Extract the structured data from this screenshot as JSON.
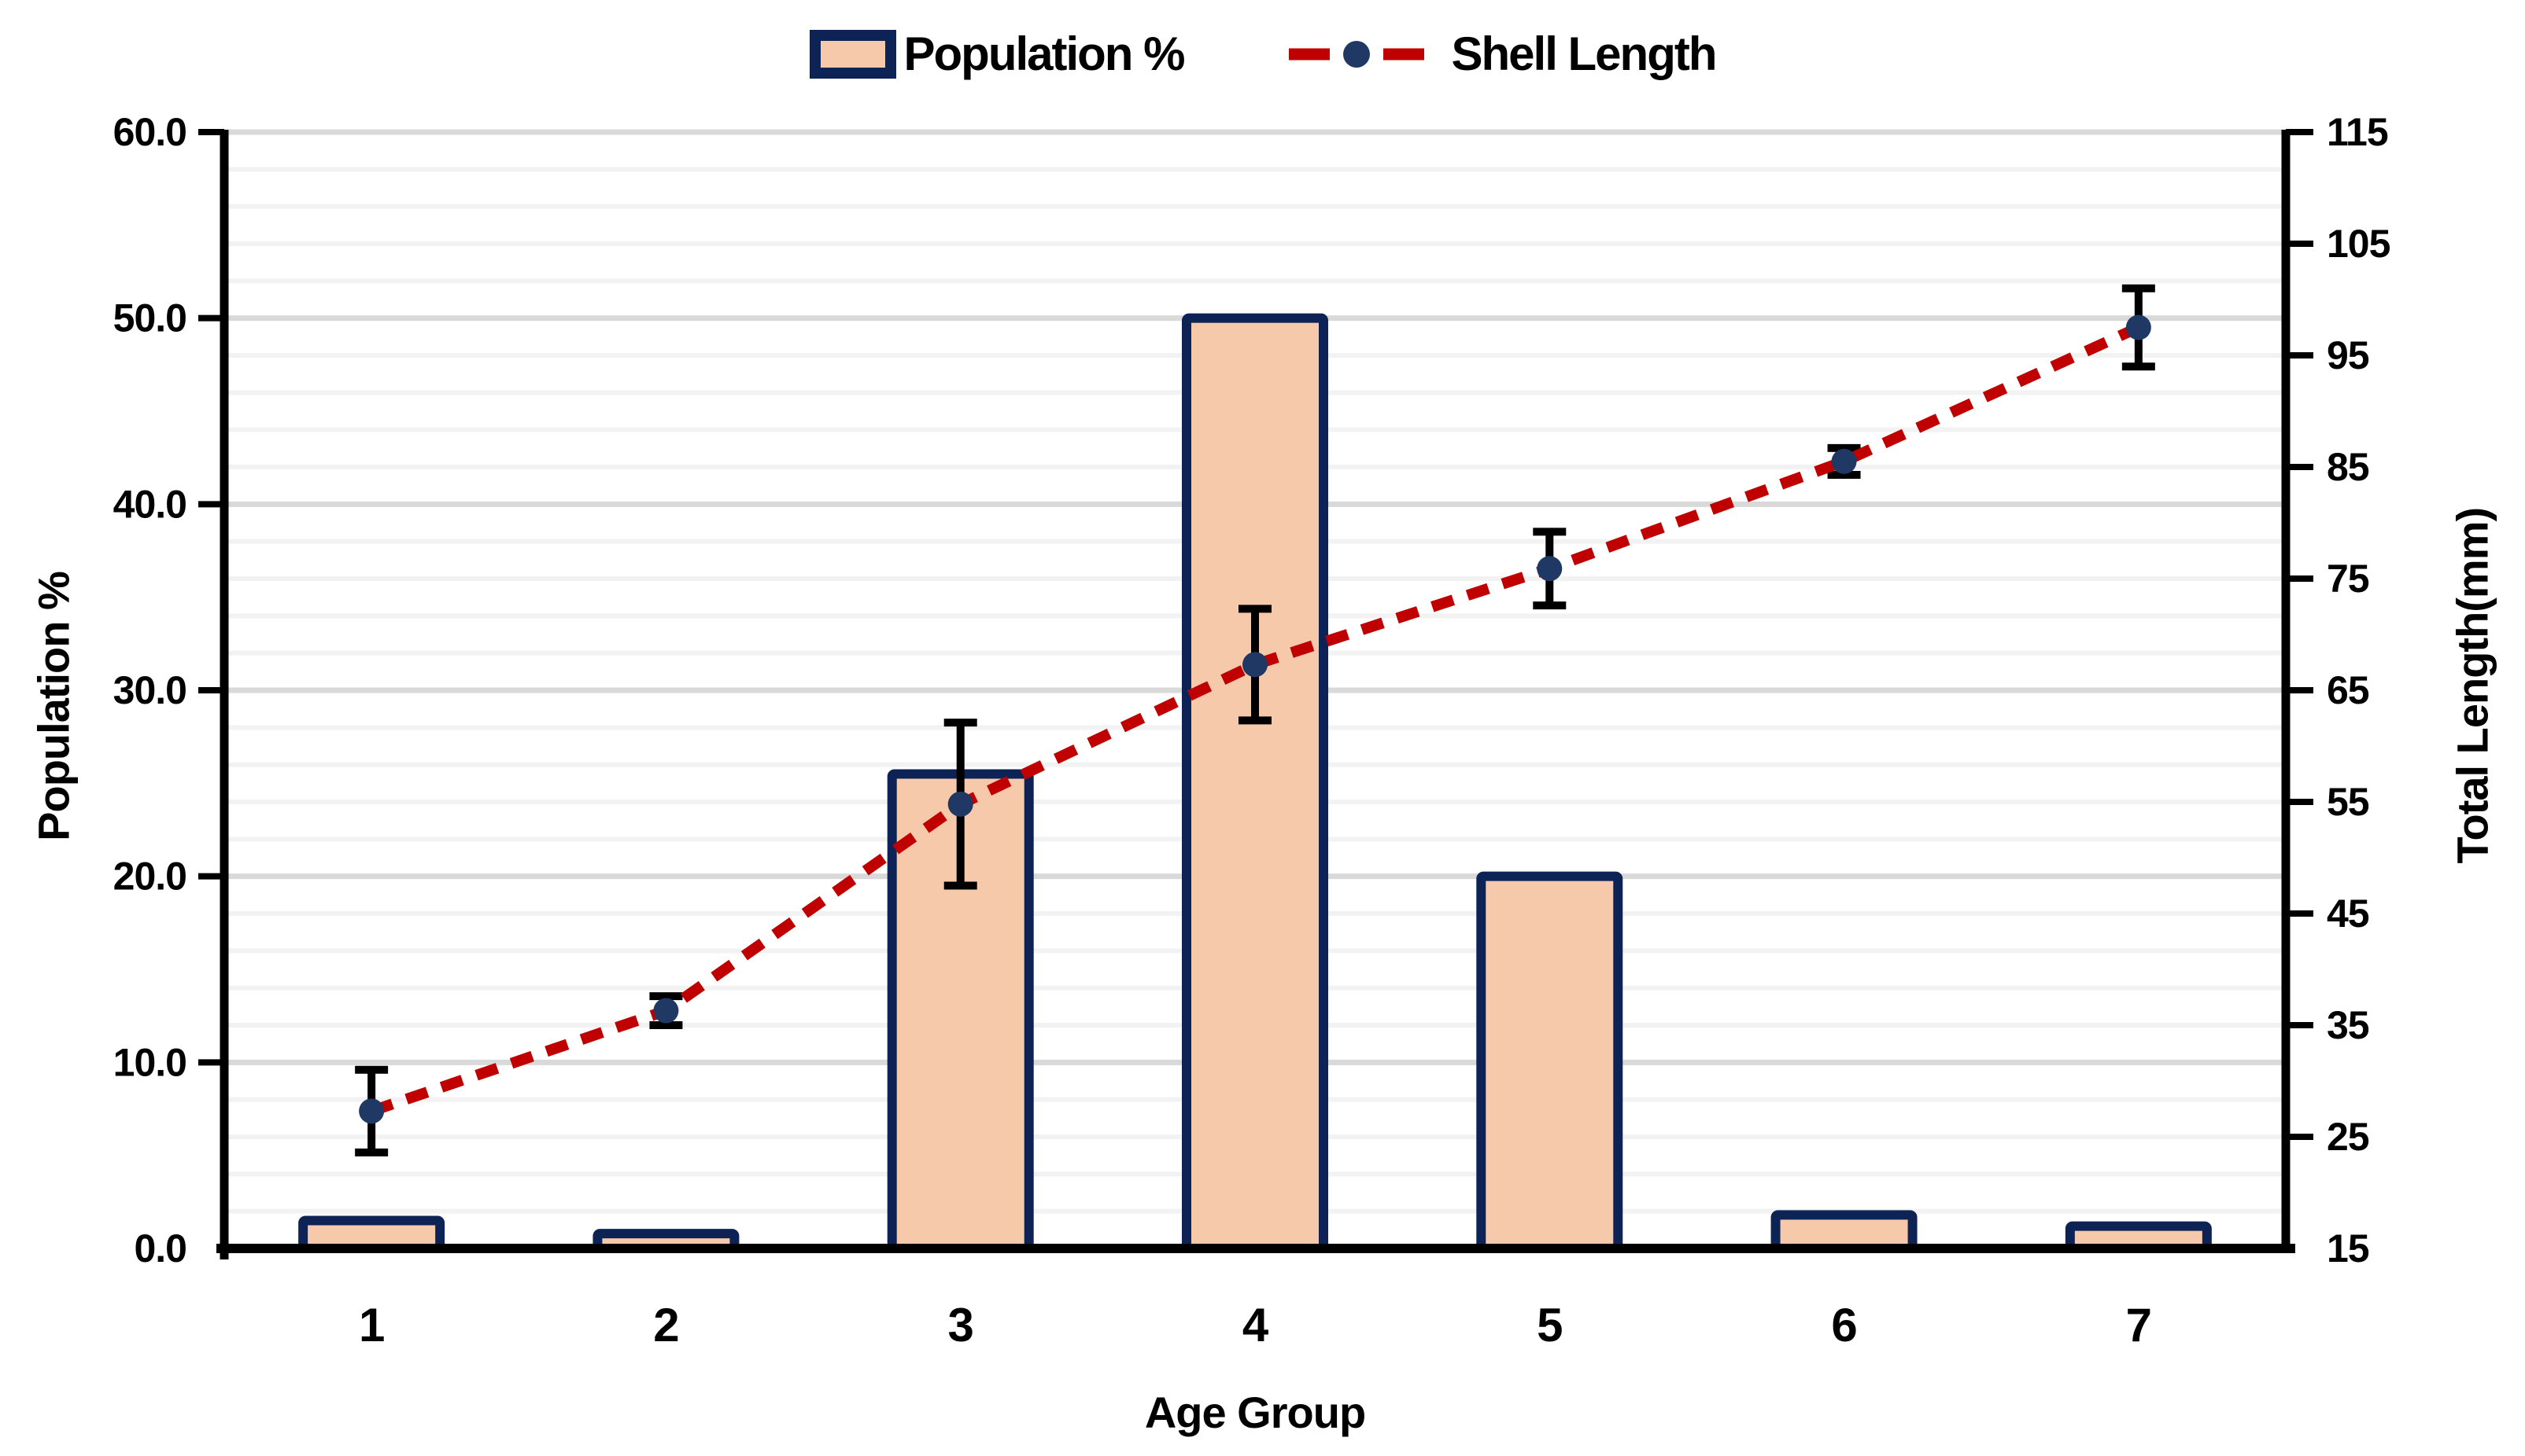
{
  "chart_data": {
    "type": "combo-bar-line",
    "categories": [
      "1",
      "2",
      "3",
      "4",
      "5",
      "6",
      "7"
    ],
    "series": [
      {
        "name": "Population %",
        "type": "bar",
        "axis": "left",
        "values": [
          1.5,
          0.8,
          25.5,
          50.0,
          20.0,
          1.8,
          1.2
        ]
      },
      {
        "name": "Shell Length",
        "type": "line",
        "axis": "right",
        "values": [
          27.3,
          36.3,
          54.8,
          67.3,
          75.9,
          85.5,
          97.5
        ],
        "error_plus": [
          3.7,
          1.3,
          7.3,
          5.0,
          3.3,
          1.2,
          3.5
        ],
        "error_minus": [
          3.7,
          1.3,
          7.3,
          5.0,
          3.3,
          1.2,
          3.5
        ]
      }
    ],
    "x_axis": {
      "label": "Age Group",
      "tick_labels": [
        "1",
        "2",
        "3",
        "4",
        "5",
        "6",
        "7"
      ]
    },
    "y_axis_left": {
      "label": "Population %",
      "min": 0,
      "max": 60,
      "major_step": 10,
      "minor_step": 2,
      "tick_labels": [
        "0.0",
        "10.0",
        "20.0",
        "30.0",
        "40.0",
        "50.0",
        "60.0"
      ]
    },
    "y_axis_right": {
      "label": "Total Length(mm)",
      "min": 15,
      "max": 115,
      "major_step": 10,
      "tick_labels": [
        "15",
        "25",
        "35",
        "45",
        "55",
        "65",
        "75",
        "85",
        "95",
        "105",
        "115"
      ]
    },
    "legend": {
      "position": "top",
      "items": [
        {
          "label": "Population %",
          "swatch": "bar"
        },
        {
          "label": "Shell Length",
          "swatch": "line-dot"
        }
      ]
    },
    "grid": {
      "major_on": true,
      "minor_on": true
    },
    "colors": {
      "bar_fill": "#F6C9AB",
      "bar_border": "#0E2355",
      "line": "#C00000",
      "marker": "#1F3864",
      "error_bar": "#000000",
      "axis": "#000000",
      "grid_major": "#D9D9D9",
      "grid_minor": "#F2F2F2"
    }
  }
}
